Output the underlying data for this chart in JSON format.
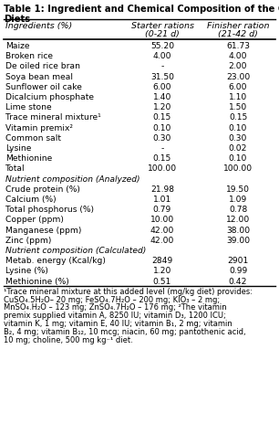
{
  "title_bold": "Table 1: ",
  "title_rest": "Ingredient and Chemical Composition of the Control\nDiets",
  "col_headers": [
    "Ingredients (%)",
    "Starter rations\n(0-21 d)",
    "Finisher ration\n(21-42 d)"
  ],
  "rows": [
    [
      "Maize",
      "55.20",
      "61.73"
    ],
    [
      "Broken rice",
      "4.00",
      "4.00"
    ],
    [
      "De oiled rice bran",
      "-",
      "2.00"
    ],
    [
      "Soya bean meal",
      "31.50",
      "23.00"
    ],
    [
      "Sunflower oil cake",
      "6.00",
      "6.00"
    ],
    [
      "Dicalcium phosphate",
      "1.40",
      "1.10"
    ],
    [
      "Lime stone",
      "1.20",
      "1.50"
    ],
    [
      "Trace mineral mixture¹",
      "0.15",
      "0.15"
    ],
    [
      "Vitamin premix²",
      "0.10",
      "0.10"
    ],
    [
      "Common salt",
      "0.30",
      "0.30"
    ],
    [
      "Lysine",
      "-",
      "0.02"
    ],
    [
      "Methionine",
      "0.15",
      "0.10"
    ],
    [
      "Total",
      "100.00",
      "100.00"
    ],
    [
      "Nutrient composition (Analyzed)",
      "",
      ""
    ],
    [
      "Crude protein (%)",
      "21.98",
      "19.50"
    ],
    [
      "Calcium (%)",
      "1.01",
      "1.09"
    ],
    [
      "Total phosphorus (%)",
      "0.79",
      "0.78"
    ],
    [
      "Copper (ppm)",
      "10.00",
      "12.00"
    ],
    [
      "Manganese (ppm)",
      "42.00",
      "38.00"
    ],
    [
      "Zinc (ppm)",
      "42.00",
      "39.00"
    ],
    [
      "Nutrient composition (Calculated)",
      "",
      ""
    ],
    [
      "Metab. energy (Kcal/kg)",
      "2849",
      "2901"
    ],
    [
      "Lysine (%)",
      "1.20",
      "0.99"
    ],
    [
      "Methionine (%)",
      "0.51",
      "0.42"
    ]
  ],
  "footnote_lines": [
    "¹Trace mineral mixture at this added level (mg/kg diet) provides:",
    "CuSO₄.5H₂O– 20 mg; FeSO₄.7H₂O – 200 mg; KIO₃ – 2 mg;",
    "MnSO₄.H₂O – 123 mg; ZnSO₄.7H₂O – 176 mg; ²The vitamin",
    "premix supplied vitamin A, 8250 IU; vitamin D₃, 1200 ICU;",
    "vitamin K, 1 mg; vitamin E, 40 IU; vitamin B₁, 2 mg; vitamin",
    "B₂, 4 mg; vitamin B₁₂, 10 mcg; niacin, 60 mg; pantothenic acid,",
    "10 mg; choline, 500 mg kg⁻¹ diet."
  ],
  "bg_color": "#ffffff",
  "text_color": "#000000"
}
